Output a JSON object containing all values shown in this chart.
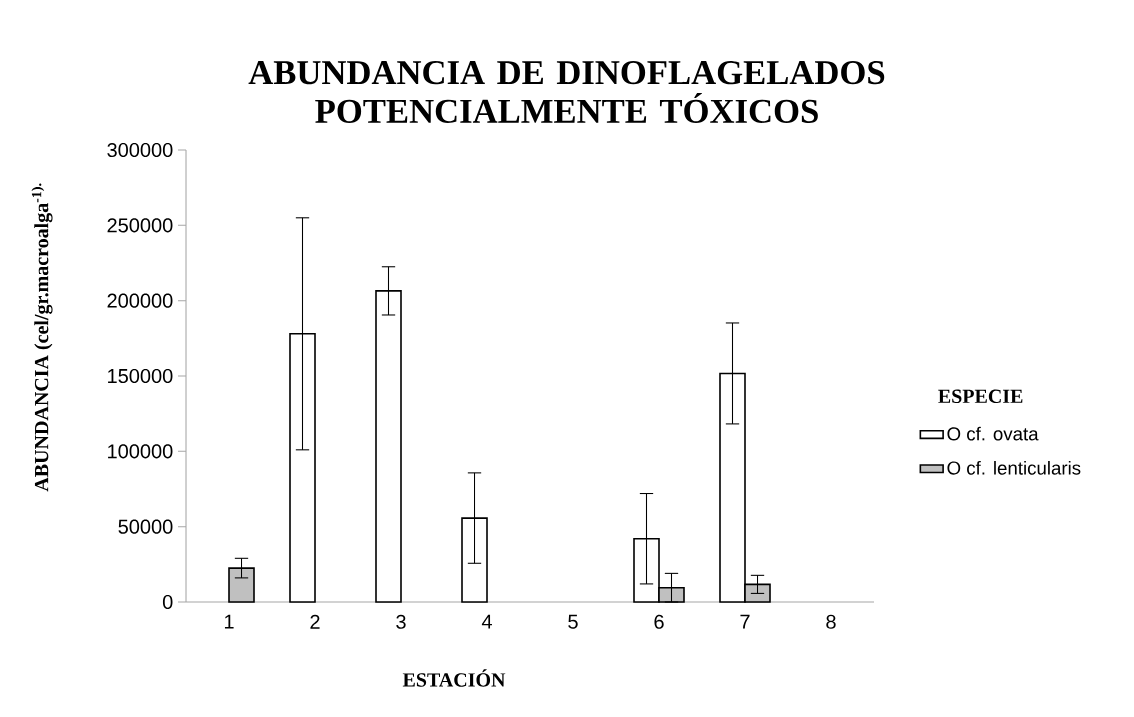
{
  "chart_data": {
    "type": "bar",
    "title": "ABUNDANCIA DE DINOFLAGELADOS POTENCIALMENTE TÓXICOS",
    "xlabel": "ESTACIÓN",
    "ylabel": "ABUNDANCIA (cel/gr.macroalga$^{-1).}$",
    "legend_title": "ESPECIE",
    "categories": [
      "1",
      "2",
      "3",
      "4",
      "5",
      "6",
      "7",
      "8"
    ],
    "series": [
      {
        "name": "O cf. ovata",
        "color": "#ffffff",
        "values": [
          null,
          178000,
          206500,
          55700,
          null,
          42000,
          151700,
          null
        ],
        "errors": [
          null,
          77000,
          16000,
          30000,
          null,
          30000,
          33500,
          null
        ]
      },
      {
        "name": "O cf. lenticularis",
        "color": "#c0c0c0",
        "values": [
          22500,
          null,
          null,
          null,
          null,
          9500,
          11700,
          null
        ],
        "errors": [
          6500,
          null,
          null,
          null,
          null,
          9500,
          6000,
          null
        ]
      }
    ],
    "ylim": [
      0,
      300000
    ],
    "yticks": [
      0,
      50000,
      100000,
      150000,
      200000,
      250000,
      300000
    ],
    "grid": false,
    "legend": "right"
  }
}
